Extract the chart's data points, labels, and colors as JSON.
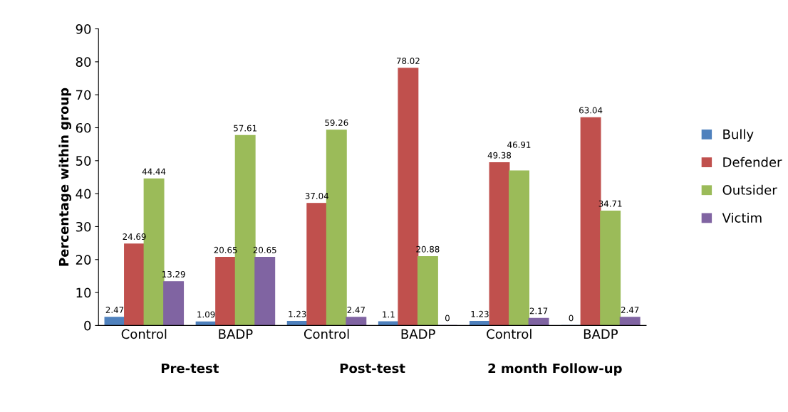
{
  "chart_data": {
    "type": "bar",
    "ylabel": "Percentage within group",
    "categories": [
      "Control",
      "BADP",
      "Control",
      "BADP",
      "Control",
      "BADP"
    ],
    "series": [
      {
        "name": "Bully",
        "color": "#4f81bd",
        "values": [
          2.47,
          1.09,
          1.23,
          1.1,
          1.23,
          0
        ]
      },
      {
        "name": "Defender",
        "color": "#c0504d",
        "values": [
          24.69,
          20.65,
          37.04,
          78.02,
          49.38,
          63.04
        ]
      },
      {
        "name": "Outsider",
        "color": "#9bbb59",
        "values": [
          44.44,
          57.61,
          59.26,
          20.88,
          46.91,
          34.71
        ]
      },
      {
        "name": "Victim",
        "color": "#8064a2",
        "values": [
          13.29,
          20.65,
          2.47,
          0,
          2.17,
          2.47
        ]
      }
    ],
    "annotations": [
      "Pre-test",
      "Post-test",
      "2 month Follow-up"
    ],
    "ylim": [
      0,
      90
    ],
    "yticks": [
      0,
      10,
      20,
      30,
      40,
      50,
      60,
      70,
      80,
      90
    ],
    "data_labels": true,
    "legend": "right",
    "grid": false
  }
}
